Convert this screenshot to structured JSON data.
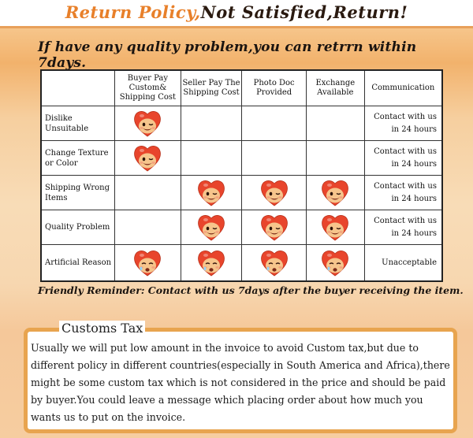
{
  "banner": {
    "part1": "Return Policy,",
    "part2": "Not Satisfied,Return!"
  },
  "headline": "If have any quality problem,you can retrrn within 7days.",
  "table": {
    "headers": [
      "",
      "Buyer Pay Custom& Shipping Cost",
      "Seller Pay The Shipping Cost",
      "Photo Doc Provided",
      "Exchange Available",
      "Communication"
    ],
    "rows": [
      {
        "label": "Dislike Unsuitable",
        "marks": [
          "happy",
          "",
          "",
          ""
        ],
        "communication": "Contact with us in 24 hours"
      },
      {
        "label": "Change Texture or Color",
        "marks": [
          "happy",
          "",
          "",
          ""
        ],
        "communication": "Contact with us in 24 hours"
      },
      {
        "label": "Shipping Wrong Items",
        "marks": [
          "",
          "happy",
          "happy",
          "happy"
        ],
        "communication": "Contact with us in 24 hours"
      },
      {
        "label": "Quality Problem",
        "marks": [
          "",
          "happy",
          "happy",
          "happy"
        ],
        "communication": "Contact with us in 24 hours"
      },
      {
        "label": "Artificial Reason",
        "marks": [
          "sad",
          "sad",
          "sad",
          "sad"
        ],
        "communication": "Unacceptable"
      }
    ]
  },
  "reminder": "Friendly Reminder: Contact with us 7days after the buyer receiving the item.",
  "customs": {
    "title": "Customs Tax",
    "text": "Usually we will put low amount in the invoice to avoid Custom tax,but due to different policy in different countries(especially in South America and Africa),there might be some custom tax which is not considered in the price and should be paid by buyer.You could leave a message which placing order about how much you wants us to put on the invoice."
  },
  "icons": {
    "happy": "smiling-heart-face-icon",
    "sad": "crying-heart-face-icon"
  },
  "colors": {
    "accent": "#e8802a",
    "box_border": "#e8a44f",
    "heart_red": "#e8452c",
    "face_skin": "#f6c58c"
  }
}
